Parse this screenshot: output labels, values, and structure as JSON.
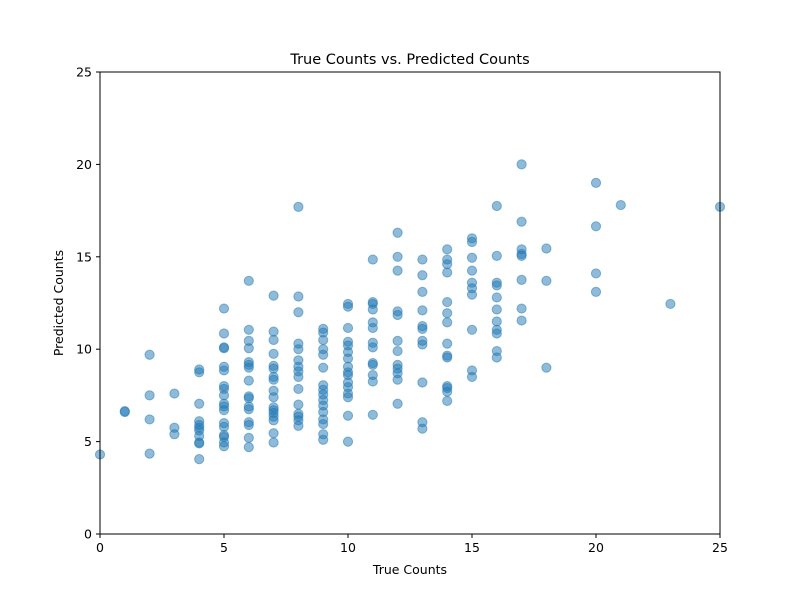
{
  "chart_data": {
    "type": "scatter",
    "title": "True Counts vs. Predicted Counts",
    "xlabel": "True Counts",
    "ylabel": "Predicted Counts",
    "xlim": [
      0,
      25
    ],
    "ylim": [
      0,
      25
    ],
    "xticks": [
      "0",
      "5",
      "10",
      "15",
      "20",
      "25"
    ],
    "yticks": [
      "0",
      "5",
      "10",
      "15",
      "20",
      "25"
    ],
    "grid": false,
    "legend": "none",
    "color": "#1f77b4",
    "points": [
      [
        0,
        4.3
      ],
      [
        1,
        6.6
      ],
      [
        1,
        6.65
      ],
      [
        2,
        9.7
      ],
      [
        2,
        7.5
      ],
      [
        2,
        6.2
      ],
      [
        2,
        4.35
      ],
      [
        3,
        7.6
      ],
      [
        3,
        5.75
      ],
      [
        3,
        5.4
      ],
      [
        4,
        8.9
      ],
      [
        4,
        8.75
      ],
      [
        4,
        7.05
      ],
      [
        4,
        6.1
      ],
      [
        4,
        5.9
      ],
      [
        4,
        5.75
      ],
      [
        4,
        5.6
      ],
      [
        4,
        5.3
      ],
      [
        4,
        4.95
      ],
      [
        4,
        4.9
      ],
      [
        4,
        4.05
      ],
      [
        5,
        12.2
      ],
      [
        5,
        10.85
      ],
      [
        5,
        10.1
      ],
      [
        5,
        10.05
      ],
      [
        5,
        9.05
      ],
      [
        5,
        8.85
      ],
      [
        5,
        8.0
      ],
      [
        5,
        7.85
      ],
      [
        5,
        7.5
      ],
      [
        5,
        7.05
      ],
      [
        5,
        6.9
      ],
      [
        5,
        6.7
      ],
      [
        5,
        6.0
      ],
      [
        5,
        5.8
      ],
      [
        5,
        5.35
      ],
      [
        5,
        5.25
      ],
      [
        5,
        4.95
      ],
      [
        5,
        4.75
      ],
      [
        6,
        13.7
      ],
      [
        6,
        11.05
      ],
      [
        6,
        10.45
      ],
      [
        6,
        10.05
      ],
      [
        6,
        9.3
      ],
      [
        6,
        9.15
      ],
      [
        6,
        9.0
      ],
      [
        6,
        8.3
      ],
      [
        6,
        7.45
      ],
      [
        6,
        7.35
      ],
      [
        6,
        6.9
      ],
      [
        6,
        6.75
      ],
      [
        6,
        6.05
      ],
      [
        6,
        5.9
      ],
      [
        6,
        5.2
      ],
      [
        6,
        4.7
      ],
      [
        7,
        12.9
      ],
      [
        7,
        10.95
      ],
      [
        7,
        10.5
      ],
      [
        7,
        9.75
      ],
      [
        7,
        9.1
      ],
      [
        7,
        8.95
      ],
      [
        7,
        8.5
      ],
      [
        7,
        8.35
      ],
      [
        7,
        7.75
      ],
      [
        7,
        7.4
      ],
      [
        7,
        6.85
      ],
      [
        7,
        6.7
      ],
      [
        7,
        6.55
      ],
      [
        7,
        6.35
      ],
      [
        7,
        6.15
      ],
      [
        7,
        5.45
      ],
      [
        7,
        4.95
      ],
      [
        8,
        17.7
      ],
      [
        8,
        12.85
      ],
      [
        8,
        12.0
      ],
      [
        8,
        10.3
      ],
      [
        8,
        10.0
      ],
      [
        8,
        9.4
      ],
      [
        8,
        9.05
      ],
      [
        8,
        8.8
      ],
      [
        8,
        8.5
      ],
      [
        8,
        7.85
      ],
      [
        8,
        7.0
      ],
      [
        8,
        6.5
      ],
      [
        8,
        6.35
      ],
      [
        8,
        6.15
      ],
      [
        8,
        5.85
      ],
      [
        9,
        11.1
      ],
      [
        9,
        10.9
      ],
      [
        9,
        10.5
      ],
      [
        9,
        10.0
      ],
      [
        9,
        9.7
      ],
      [
        9,
        9.0
      ],
      [
        9,
        8.05
      ],
      [
        9,
        7.8
      ],
      [
        9,
        7.55
      ],
      [
        9,
        7.25
      ],
      [
        9,
        6.95
      ],
      [
        9,
        6.6
      ],
      [
        9,
        6.2
      ],
      [
        9,
        5.95
      ],
      [
        9,
        5.4
      ],
      [
        9,
        5.1
      ],
      [
        10,
        12.45
      ],
      [
        10,
        12.3
      ],
      [
        10,
        11.15
      ],
      [
        10,
        10.4
      ],
      [
        10,
        10.2
      ],
      [
        10,
        9.85
      ],
      [
        10,
        9.5
      ],
      [
        10,
        9.05
      ],
      [
        10,
        8.75
      ],
      [
        10,
        8.6
      ],
      [
        10,
        8.2
      ],
      [
        10,
        7.95
      ],
      [
        10,
        7.6
      ],
      [
        10,
        7.4
      ],
      [
        10,
        6.4
      ],
      [
        10,
        5.0
      ],
      [
        11,
        14.85
      ],
      [
        11,
        12.55
      ],
      [
        11,
        12.45
      ],
      [
        11,
        12.15
      ],
      [
        11,
        11.45
      ],
      [
        11,
        11.15
      ],
      [
        11,
        10.35
      ],
      [
        11,
        10.1
      ],
      [
        11,
        9.25
      ],
      [
        11,
        9.15
      ],
      [
        11,
        8.6
      ],
      [
        11,
        8.25
      ],
      [
        11,
        6.45
      ],
      [
        12,
        16.3
      ],
      [
        12,
        15.0
      ],
      [
        12,
        14.25
      ],
      [
        12,
        12.05
      ],
      [
        12,
        11.85
      ],
      [
        12,
        10.45
      ],
      [
        12,
        9.9
      ],
      [
        12,
        9.15
      ],
      [
        12,
        8.95
      ],
      [
        12,
        8.7
      ],
      [
        12,
        8.35
      ],
      [
        12,
        7.05
      ],
      [
        13,
        14.85
      ],
      [
        13,
        14.0
      ],
      [
        13,
        13.1
      ],
      [
        13,
        12.1
      ],
      [
        13,
        11.25
      ],
      [
        13,
        11.1
      ],
      [
        13,
        10.45
      ],
      [
        13,
        10.25
      ],
      [
        13,
        8.2
      ],
      [
        13,
        6.05
      ],
      [
        13,
        5.7
      ],
      [
        14,
        15.4
      ],
      [
        14,
        14.85
      ],
      [
        14,
        14.6
      ],
      [
        14,
        14.15
      ],
      [
        14,
        12.55
      ],
      [
        14,
        11.95
      ],
      [
        14,
        11.45
      ],
      [
        14,
        10.3
      ],
      [
        14,
        9.65
      ],
      [
        14,
        9.55
      ],
      [
        14,
        8.0
      ],
      [
        14,
        7.9
      ],
      [
        14,
        7.7
      ],
      [
        14,
        7.2
      ],
      [
        15,
        16.0
      ],
      [
        15,
        15.8
      ],
      [
        15,
        14.95
      ],
      [
        15,
        14.25
      ],
      [
        15,
        13.6
      ],
      [
        15,
        13.3
      ],
      [
        15,
        12.95
      ],
      [
        15,
        11.05
      ],
      [
        15,
        8.85
      ],
      [
        15,
        8.5
      ],
      [
        16,
        17.75
      ],
      [
        16,
        15.05
      ],
      [
        16,
        13.6
      ],
      [
        16,
        13.45
      ],
      [
        16,
        12.8
      ],
      [
        16,
        12.15
      ],
      [
        16,
        11.5
      ],
      [
        16,
        11.05
      ],
      [
        16,
        10.85
      ],
      [
        16,
        9.9
      ],
      [
        16,
        9.55
      ],
      [
        17,
        20.0
      ],
      [
        17,
        16.9
      ],
      [
        17,
        15.4
      ],
      [
        17,
        15.15
      ],
      [
        17,
        15.05
      ],
      [
        17,
        13.75
      ],
      [
        17,
        12.2
      ],
      [
        17,
        11.55
      ],
      [
        18,
        15.45
      ],
      [
        18,
        13.7
      ],
      [
        18,
        9.0
      ],
      [
        20,
        19.0
      ],
      [
        20,
        16.65
      ],
      [
        20,
        14.1
      ],
      [
        20,
        13.1
      ],
      [
        21,
        17.8
      ],
      [
        23,
        12.45
      ],
      [
        25,
        17.7
      ]
    ]
  }
}
